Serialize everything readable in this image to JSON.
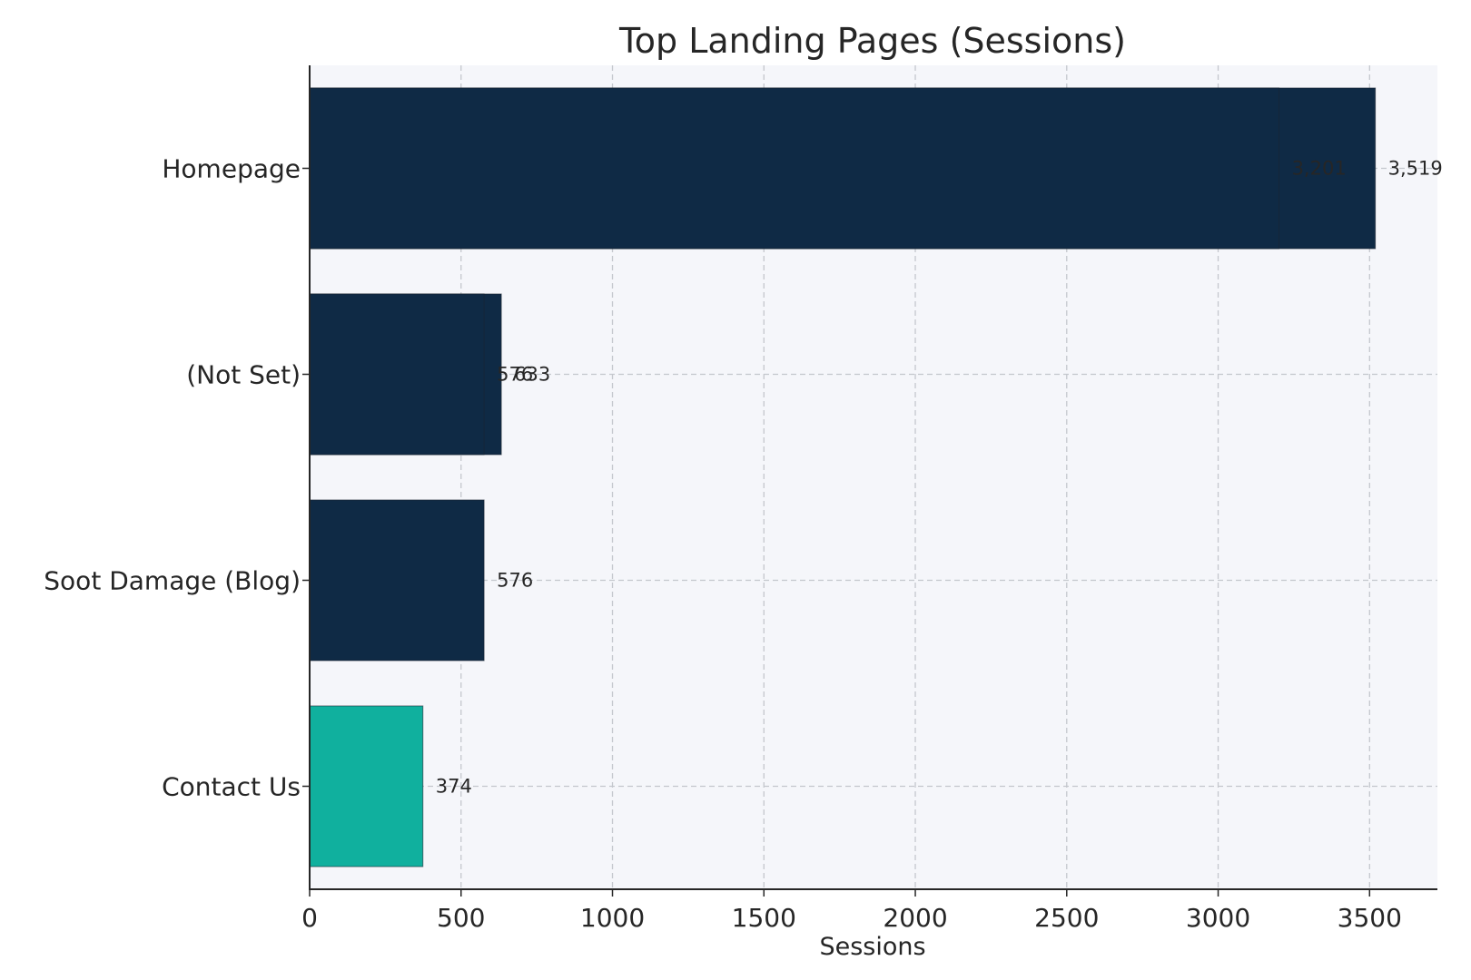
{
  "chart_data": {
    "type": "bar",
    "orientation": "horizontal",
    "title": "Top Landing Pages (Sessions)",
    "xlabel": "Sessions",
    "ylabel": "",
    "xlim": [
      0,
      3700
    ],
    "xticks": [
      0,
      500,
      1000,
      1500,
      2000,
      2500,
      3000,
      3500
    ],
    "grid": true,
    "categories": [
      "Homepage",
      "(Not Set)",
      "Soot Damage (Blog)",
      "Contact Us"
    ],
    "series": [
      {
        "values": [
          3519,
          633,
          576,
          374
        ],
        "labels": [
          "3,519",
          "633",
          "576",
          "374"
        ],
        "colors": [
          "#0f2a45",
          "#0f2a45",
          "#0f2a45",
          "#10b09e"
        ]
      },
      {
        "values": [
          3201,
          576,
          null,
          null
        ],
        "labels": [
          "3,201",
          "576",
          "",
          ""
        ],
        "colors": [
          "#0f2a45",
          "#0f2a45",
          null,
          null
        ]
      }
    ],
    "colors": {
      "primary": "#0f2a45",
      "highlight": "#10b09e",
      "plot_background": "#f5f6fa"
    }
  }
}
